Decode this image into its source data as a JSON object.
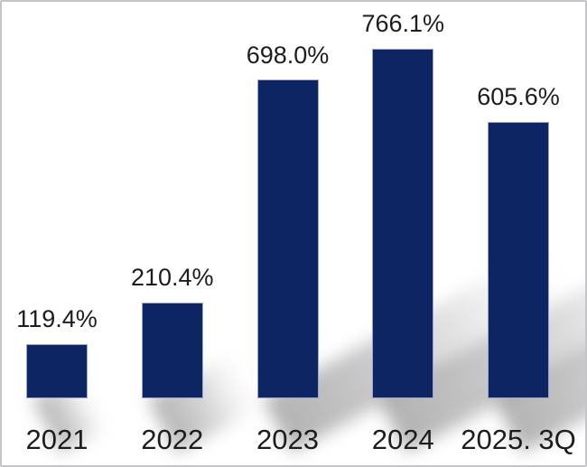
{
  "window": {
    "background": "#ffffff",
    "border_color": "#c5c5c7"
  },
  "chart_data": {
    "type": "bar",
    "title": "",
    "xlabel": "",
    "ylabel": "",
    "categories": [
      "2021",
      "2022",
      "2023",
      "2024",
      "2025. 3Q"
    ],
    "values": [
      119.4,
      210.4,
      698.0,
      766.1,
      605.6
    ],
    "value_labels": [
      "119.4%",
      "210.4%",
      "698.0%",
      "766.1%",
      "605.6%"
    ],
    "ylim": [
      0,
      800
    ],
    "grid": false,
    "legend": false,
    "axes_lines": false,
    "bar_color": "#0e2563",
    "bar_edge_color": "#9ea6c9",
    "shadow_color": "#8f8f8f",
    "value_label_color": "#1d1d1d",
    "axis_label_color": "#1d1d1d"
  }
}
